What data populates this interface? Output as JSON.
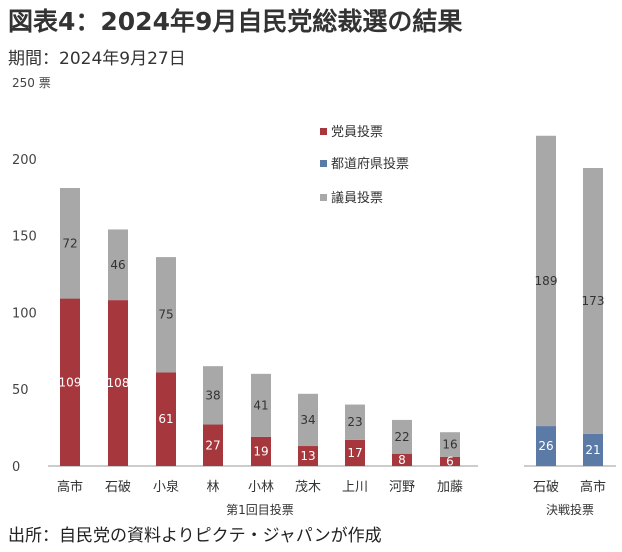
{
  "title": "図表4：2024年9月自民党総裁選の結果",
  "period": "期間：2024年9月27日",
  "source": "出所：自民党の資料よりピクテ・ジャパンが作成",
  "chart_data": {
    "type": "bar",
    "stacked": true,
    "y_unit": "票",
    "ylim": [
      0,
      250
    ],
    "yticks": [
      0,
      50,
      100,
      150,
      200,
      250
    ],
    "grid": false,
    "legend_position": "top-center",
    "groups": [
      {
        "label": "第1回目投票",
        "categories": [
          "高市",
          "石破",
          "小泉",
          "林",
          "小林",
          "茂木",
          "上川",
          "河野",
          "加藤"
        ]
      },
      {
        "label": "決戦投票",
        "categories": [
          "石破",
          "高市"
        ]
      }
    ],
    "categories": [
      "高市",
      "石破",
      "小泉",
      "林",
      "小林",
      "茂木",
      "上川",
      "河野",
      "加藤",
      "石破",
      "高市"
    ],
    "series": [
      {
        "name": "党員投票",
        "color": "#a6373d",
        "values": [
          109,
          108,
          61,
          27,
          19,
          13,
          17,
          8,
          6,
          0,
          0
        ]
      },
      {
        "name": "都道府県投票",
        "color": "#5b7ba6",
        "values": [
          0,
          0,
          0,
          0,
          0,
          0,
          0,
          0,
          0,
          26,
          21
        ]
      },
      {
        "name": "議員投票",
        "color": "#a8a8a8",
        "values": [
          72,
          46,
          75,
          38,
          41,
          34,
          23,
          22,
          16,
          189,
          173
        ]
      }
    ]
  }
}
